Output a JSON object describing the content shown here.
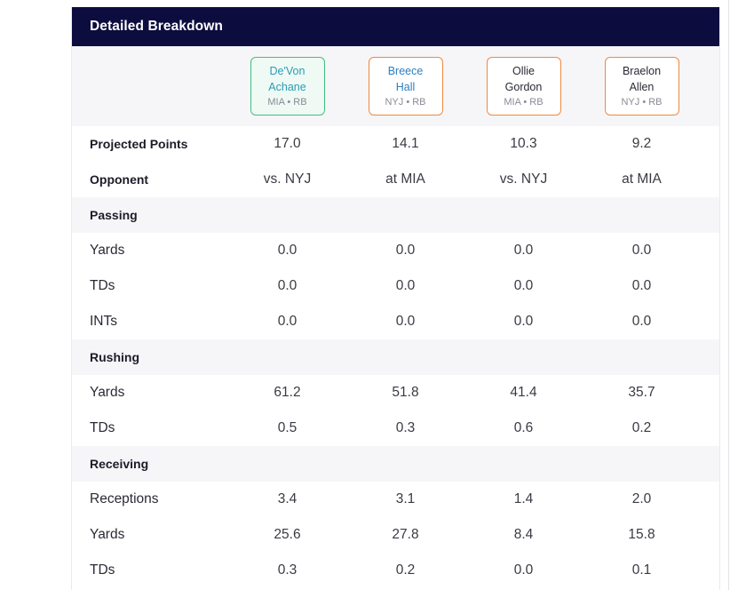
{
  "header": {
    "title": "Detailed Breakdown"
  },
  "players": [
    {
      "first": "De'Von",
      "last": "Achane",
      "meta": "MIA • RB",
      "border": "#3fbf7f",
      "bg": "#effaf4",
      "name_color": "#2b9bb8"
    },
    {
      "first": "Breece",
      "last": "Hall",
      "meta": "NYJ • RB",
      "border": "#f0883e",
      "bg": "#ffffff",
      "name_color": "#2b7fc2"
    },
    {
      "first": "Ollie",
      "last": "Gordon",
      "meta": "MIA • RB",
      "border": "#f0883e",
      "bg": "#ffffff",
      "name_color": "#2a2a36"
    },
    {
      "first": "Braelon",
      "last": "Allen",
      "meta": "NYJ • RB",
      "border": "#f0883e",
      "bg": "#ffffff",
      "name_color": "#2a2a36"
    }
  ],
  "summary": {
    "projected": {
      "label": "Projected Points",
      "values": [
        "17.0",
        "14.1",
        "10.3",
        "9.2"
      ]
    },
    "opponent": {
      "label": "Opponent",
      "values": [
        "vs. NYJ",
        "at MIA",
        "vs. NYJ",
        "at MIA"
      ]
    }
  },
  "passing": {
    "title": "Passing",
    "yards": {
      "label": "Yards",
      "values": [
        "0.0",
        "0.0",
        "0.0",
        "0.0"
      ]
    },
    "tds": {
      "label": "TDs",
      "values": [
        "0.0",
        "0.0",
        "0.0",
        "0.0"
      ]
    },
    "ints": {
      "label": "INTs",
      "values": [
        "0.0",
        "0.0",
        "0.0",
        "0.0"
      ]
    }
  },
  "rushing": {
    "title": "Rushing",
    "yards": {
      "label": "Yards",
      "values": [
        "61.2",
        "51.8",
        "41.4",
        "35.7"
      ]
    },
    "tds": {
      "label": "TDs",
      "values": [
        "0.5",
        "0.3",
        "0.6",
        "0.2"
      ]
    }
  },
  "receiving": {
    "title": "Receiving",
    "receptions": {
      "label": "Receptions",
      "values": [
        "3.4",
        "3.1",
        "1.4",
        "2.0"
      ]
    },
    "yards": {
      "label": "Yards",
      "values": [
        "25.6",
        "27.8",
        "8.4",
        "15.8"
      ]
    },
    "tds": {
      "label": "TDs",
      "values": [
        "0.3",
        "0.2",
        "0.0",
        "0.1"
      ]
    }
  }
}
